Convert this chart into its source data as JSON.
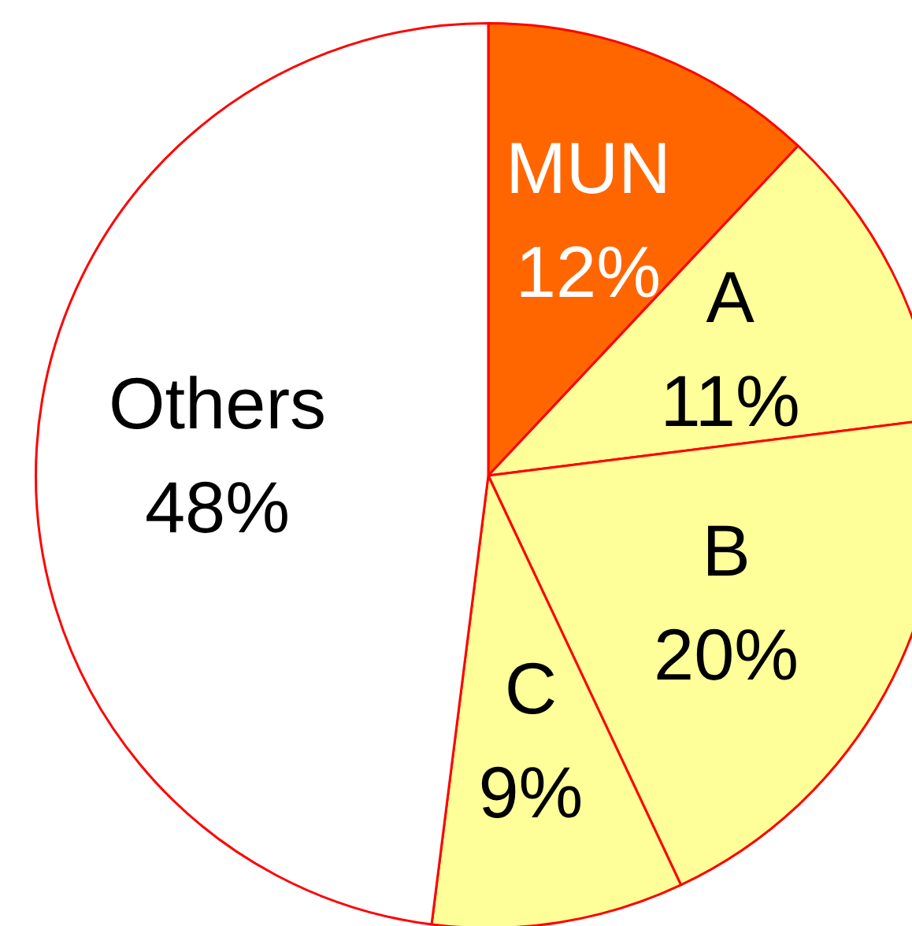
{
  "chart_data": {
    "type": "pie",
    "categories": [
      "MUN",
      "A",
      "B",
      "C",
      "Others"
    ],
    "values": [
      12,
      11,
      20,
      9,
      48
    ],
    "colors": [
      "#ff6600",
      "#ffff99",
      "#ffff99",
      "#ffff99",
      "#ffffff"
    ],
    "value_labels": [
      "12%",
      "11%",
      "20%",
      "9%",
      "48%"
    ]
  }
}
